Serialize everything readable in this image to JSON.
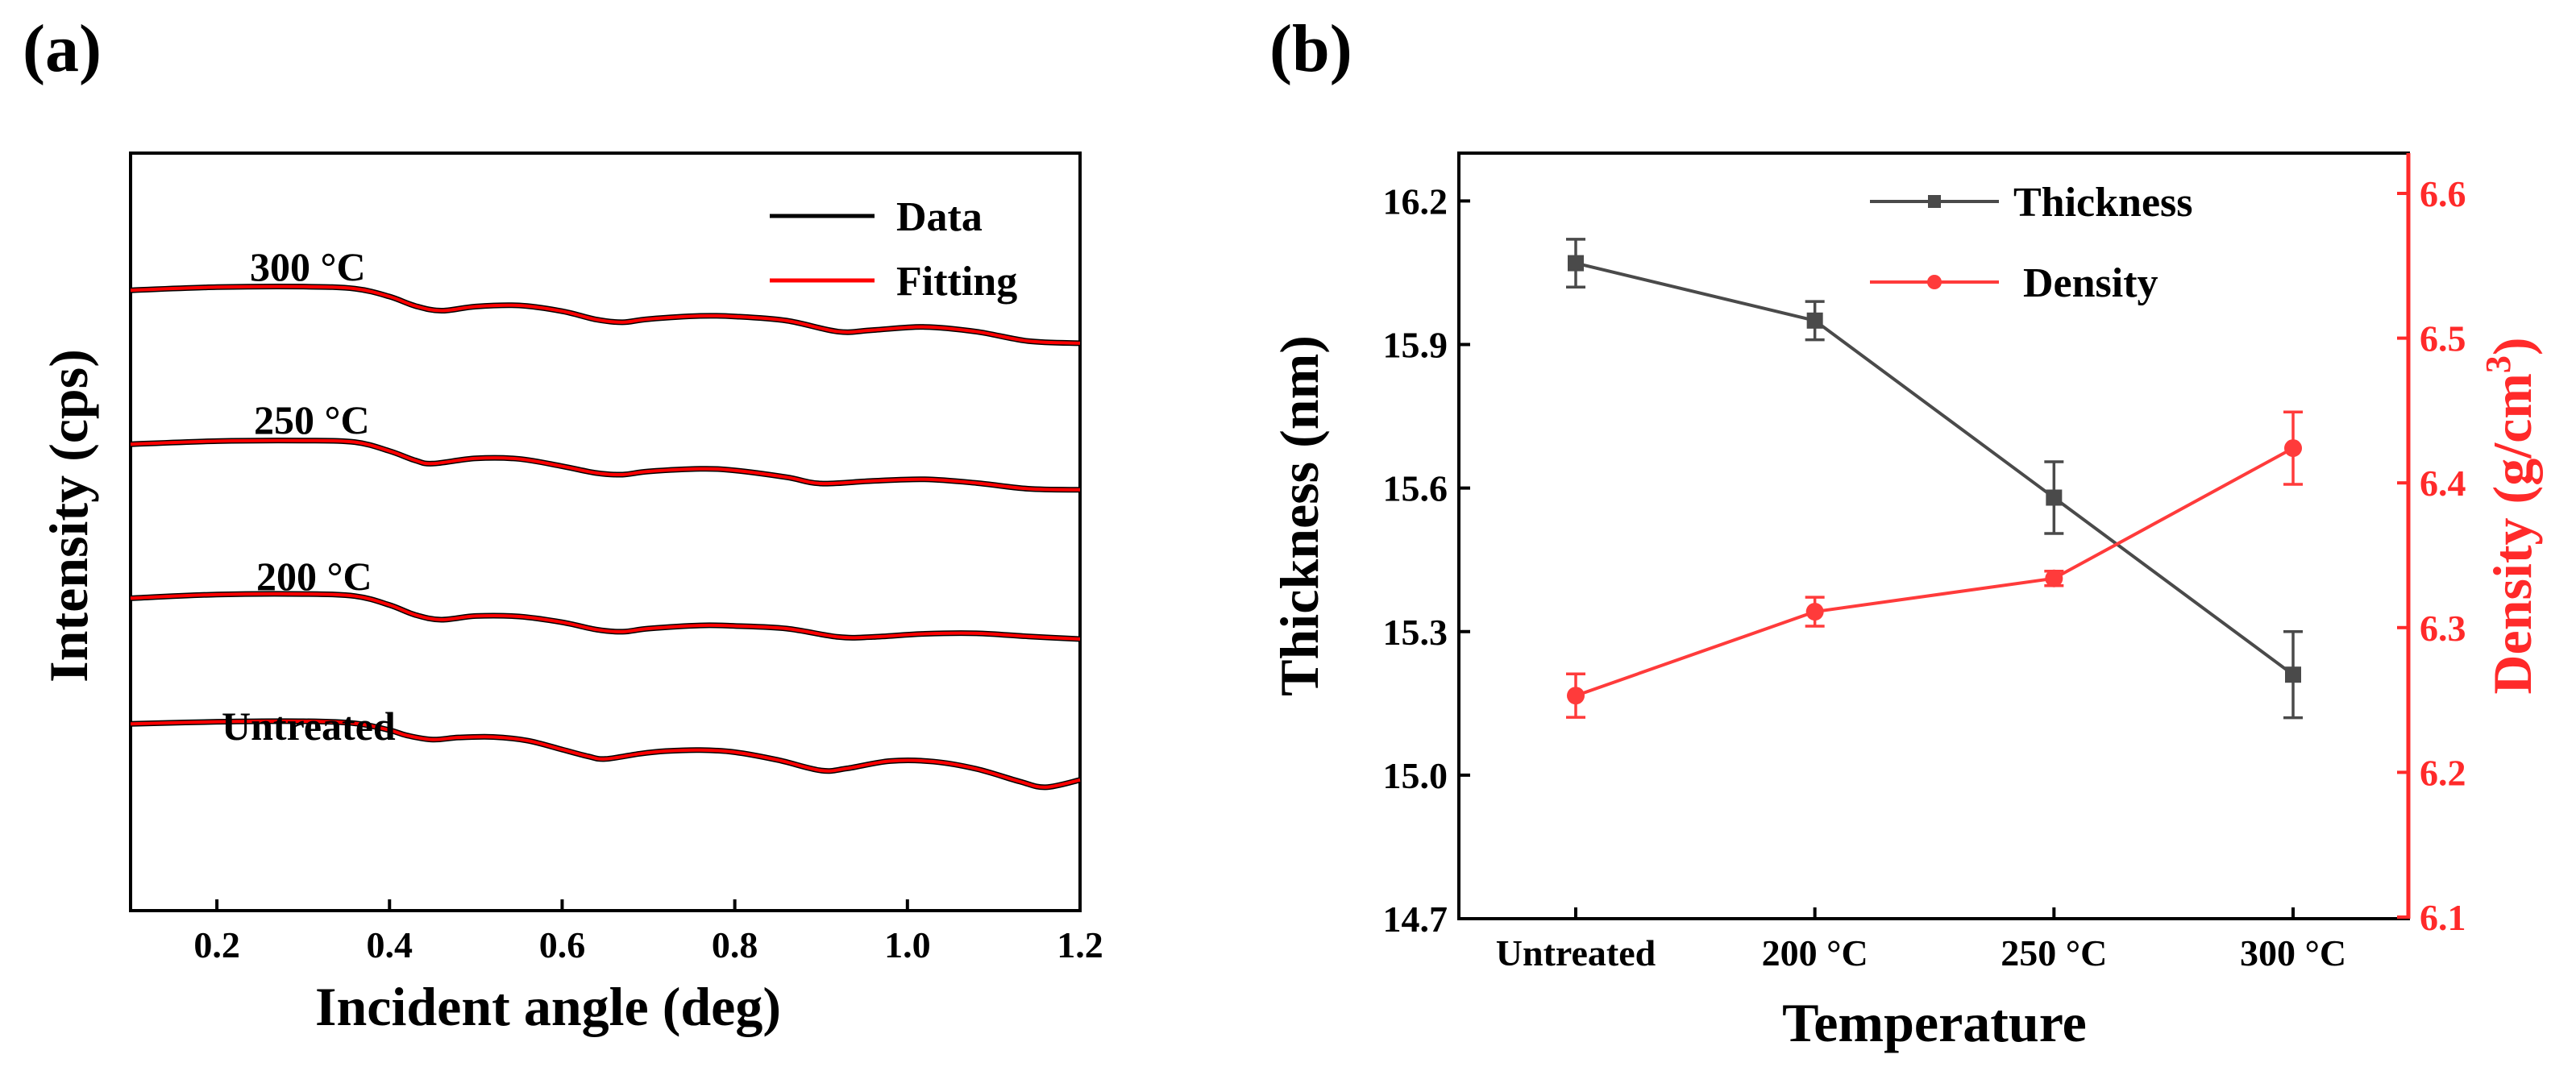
{
  "chart_data": [
    {
      "panel_label": "(a)",
      "type": "line",
      "title": "",
      "xlabel": "Incident angle (deg)",
      "ylabel": "Intensity (cps)",
      "xlim": [
        0.1,
        1.2
      ],
      "xticks": [
        0.2,
        0.4,
        0.6,
        0.8,
        1.0,
        1.2
      ],
      "xtick_labels": [
        "0.2",
        "0.4",
        "0.6",
        "0.8",
        "1.0",
        "1.2"
      ],
      "y_ticks_shown": false,
      "legend": {
        "placement": "top-right",
        "entries": [
          {
            "name": "Data",
            "color": "#000000"
          },
          {
            "name": "Fitting",
            "color": "#ff0000"
          }
        ]
      },
      "curves": [
        {
          "name": "300 °C",
          "label": "300 °C",
          "offset": 3,
          "x": [
            0.1,
            0.2,
            0.3,
            0.36,
            0.4,
            0.43,
            0.46,
            0.5,
            0.55,
            0.6,
            0.64,
            0.67,
            0.7,
            0.76,
            0.8,
            0.86,
            0.92,
            0.96,
            1.02,
            1.08,
            1.14,
            1.2
          ],
          "y": [
            0.92,
            0.98,
            0.99,
            0.95,
            0.8,
            0.62,
            0.53,
            0.61,
            0.63,
            0.52,
            0.36,
            0.31,
            0.37,
            0.43,
            0.42,
            0.34,
            0.13,
            0.16,
            0.22,
            0.13,
            -0.05,
            -0.09
          ]
        },
        {
          "name": "250 °C",
          "label": "250 °C",
          "offset": 2,
          "x": [
            0.1,
            0.2,
            0.3,
            0.36,
            0.4,
            0.43,
            0.45,
            0.5,
            0.55,
            0.6,
            0.64,
            0.67,
            0.7,
            0.76,
            0.8,
            0.86,
            0.9,
            0.96,
            1.02,
            1.08,
            1.14,
            1.2
          ],
          "y": [
            0.75,
            0.81,
            0.82,
            0.79,
            0.62,
            0.44,
            0.38,
            0.48,
            0.47,
            0.33,
            0.2,
            0.17,
            0.23,
            0.28,
            0.25,
            0.12,
            0.0,
            0.05,
            0.08,
            0.01,
            -0.1,
            -0.12
          ]
        },
        {
          "name": "200 °C",
          "label": "200 °C",
          "offset": 1,
          "x": [
            0.1,
            0.2,
            0.3,
            0.36,
            0.4,
            0.43,
            0.46,
            0.5,
            0.55,
            0.6,
            0.64,
            0.67,
            0.7,
            0.76,
            0.8,
            0.86,
            0.92,
            0.96,
            1.02,
            1.08,
            1.14,
            1.2
          ],
          "y": [
            0.58,
            0.65,
            0.66,
            0.62,
            0.45,
            0.26,
            0.17,
            0.24,
            0.23,
            0.12,
            -0.02,
            -0.06,
            0.0,
            0.06,
            0.05,
            0.0,
            -0.16,
            -0.16,
            -0.1,
            -0.09,
            -0.15,
            -0.2
          ]
        },
        {
          "name": "Untreated",
          "label": "Untreated",
          "offset": 0,
          "x": [
            0.1,
            0.2,
            0.3,
            0.36,
            0.4,
            0.42,
            0.45,
            0.48,
            0.52,
            0.56,
            0.6,
            0.63,
            0.65,
            0.69,
            0.72,
            0.76,
            0.8,
            0.85,
            0.9,
            0.93,
            0.98,
            1.03,
            1.08,
            1.13,
            1.16,
            1.2
          ],
          "y": [
            0.95,
            0.99,
            1.0,
            0.96,
            0.83,
            0.73,
            0.65,
            0.69,
            0.7,
            0.63,
            0.46,
            0.33,
            0.28,
            0.38,
            0.43,
            0.45,
            0.41,
            0.26,
            0.06,
            0.1,
            0.24,
            0.23,
            0.09,
            -0.15,
            -0.26,
            -0.12
          ]
        }
      ]
    },
    {
      "panel_label": "(b)",
      "type": "line",
      "title": "",
      "xlabel": "Temperature",
      "categories": [
        "Untreated",
        "200 °C",
        "250 °C",
        "300 °C"
      ],
      "ylabel": "Thickness (nm)",
      "y2label_main": "Density (g/cm",
      "y2label_sup": "3",
      "y2label_end": ")",
      "ylim": [
        14.7,
        16.3
      ],
      "yticks": [
        14.7,
        15.0,
        15.3,
        15.6,
        15.9,
        16.2
      ],
      "ytick_labels": [
        "14.7",
        "15.0",
        "15.3",
        "15.6",
        "15.9",
        "16.2"
      ],
      "y2lim": [
        6.1,
        6.6
      ],
      "y2ticks": [
        6.1,
        6.2,
        6.3,
        6.4,
        6.5,
        6.6
      ],
      "y2tick_labels": [
        "6.1",
        "6.2",
        "6.3",
        "6.4",
        "6.5",
        "6.6"
      ],
      "legend": {
        "placement": "top-center"
      },
      "series": [
        {
          "name": "Thickness",
          "axis": "left",
          "color": "#4a4a4a",
          "marker": "square",
          "values": [
            16.07,
            15.95,
            15.58,
            15.21
          ],
          "errors": [
            0.05,
            0.04,
            0.075,
            0.09
          ]
        },
        {
          "name": "Density",
          "axis": "right",
          "color": "#ff3b3b",
          "marker": "circle",
          "values": [
            6.253,
            6.311,
            6.334,
            6.424
          ],
          "errors": [
            0.015,
            0.01,
            0.005,
            0.025
          ]
        }
      ]
    }
  ]
}
